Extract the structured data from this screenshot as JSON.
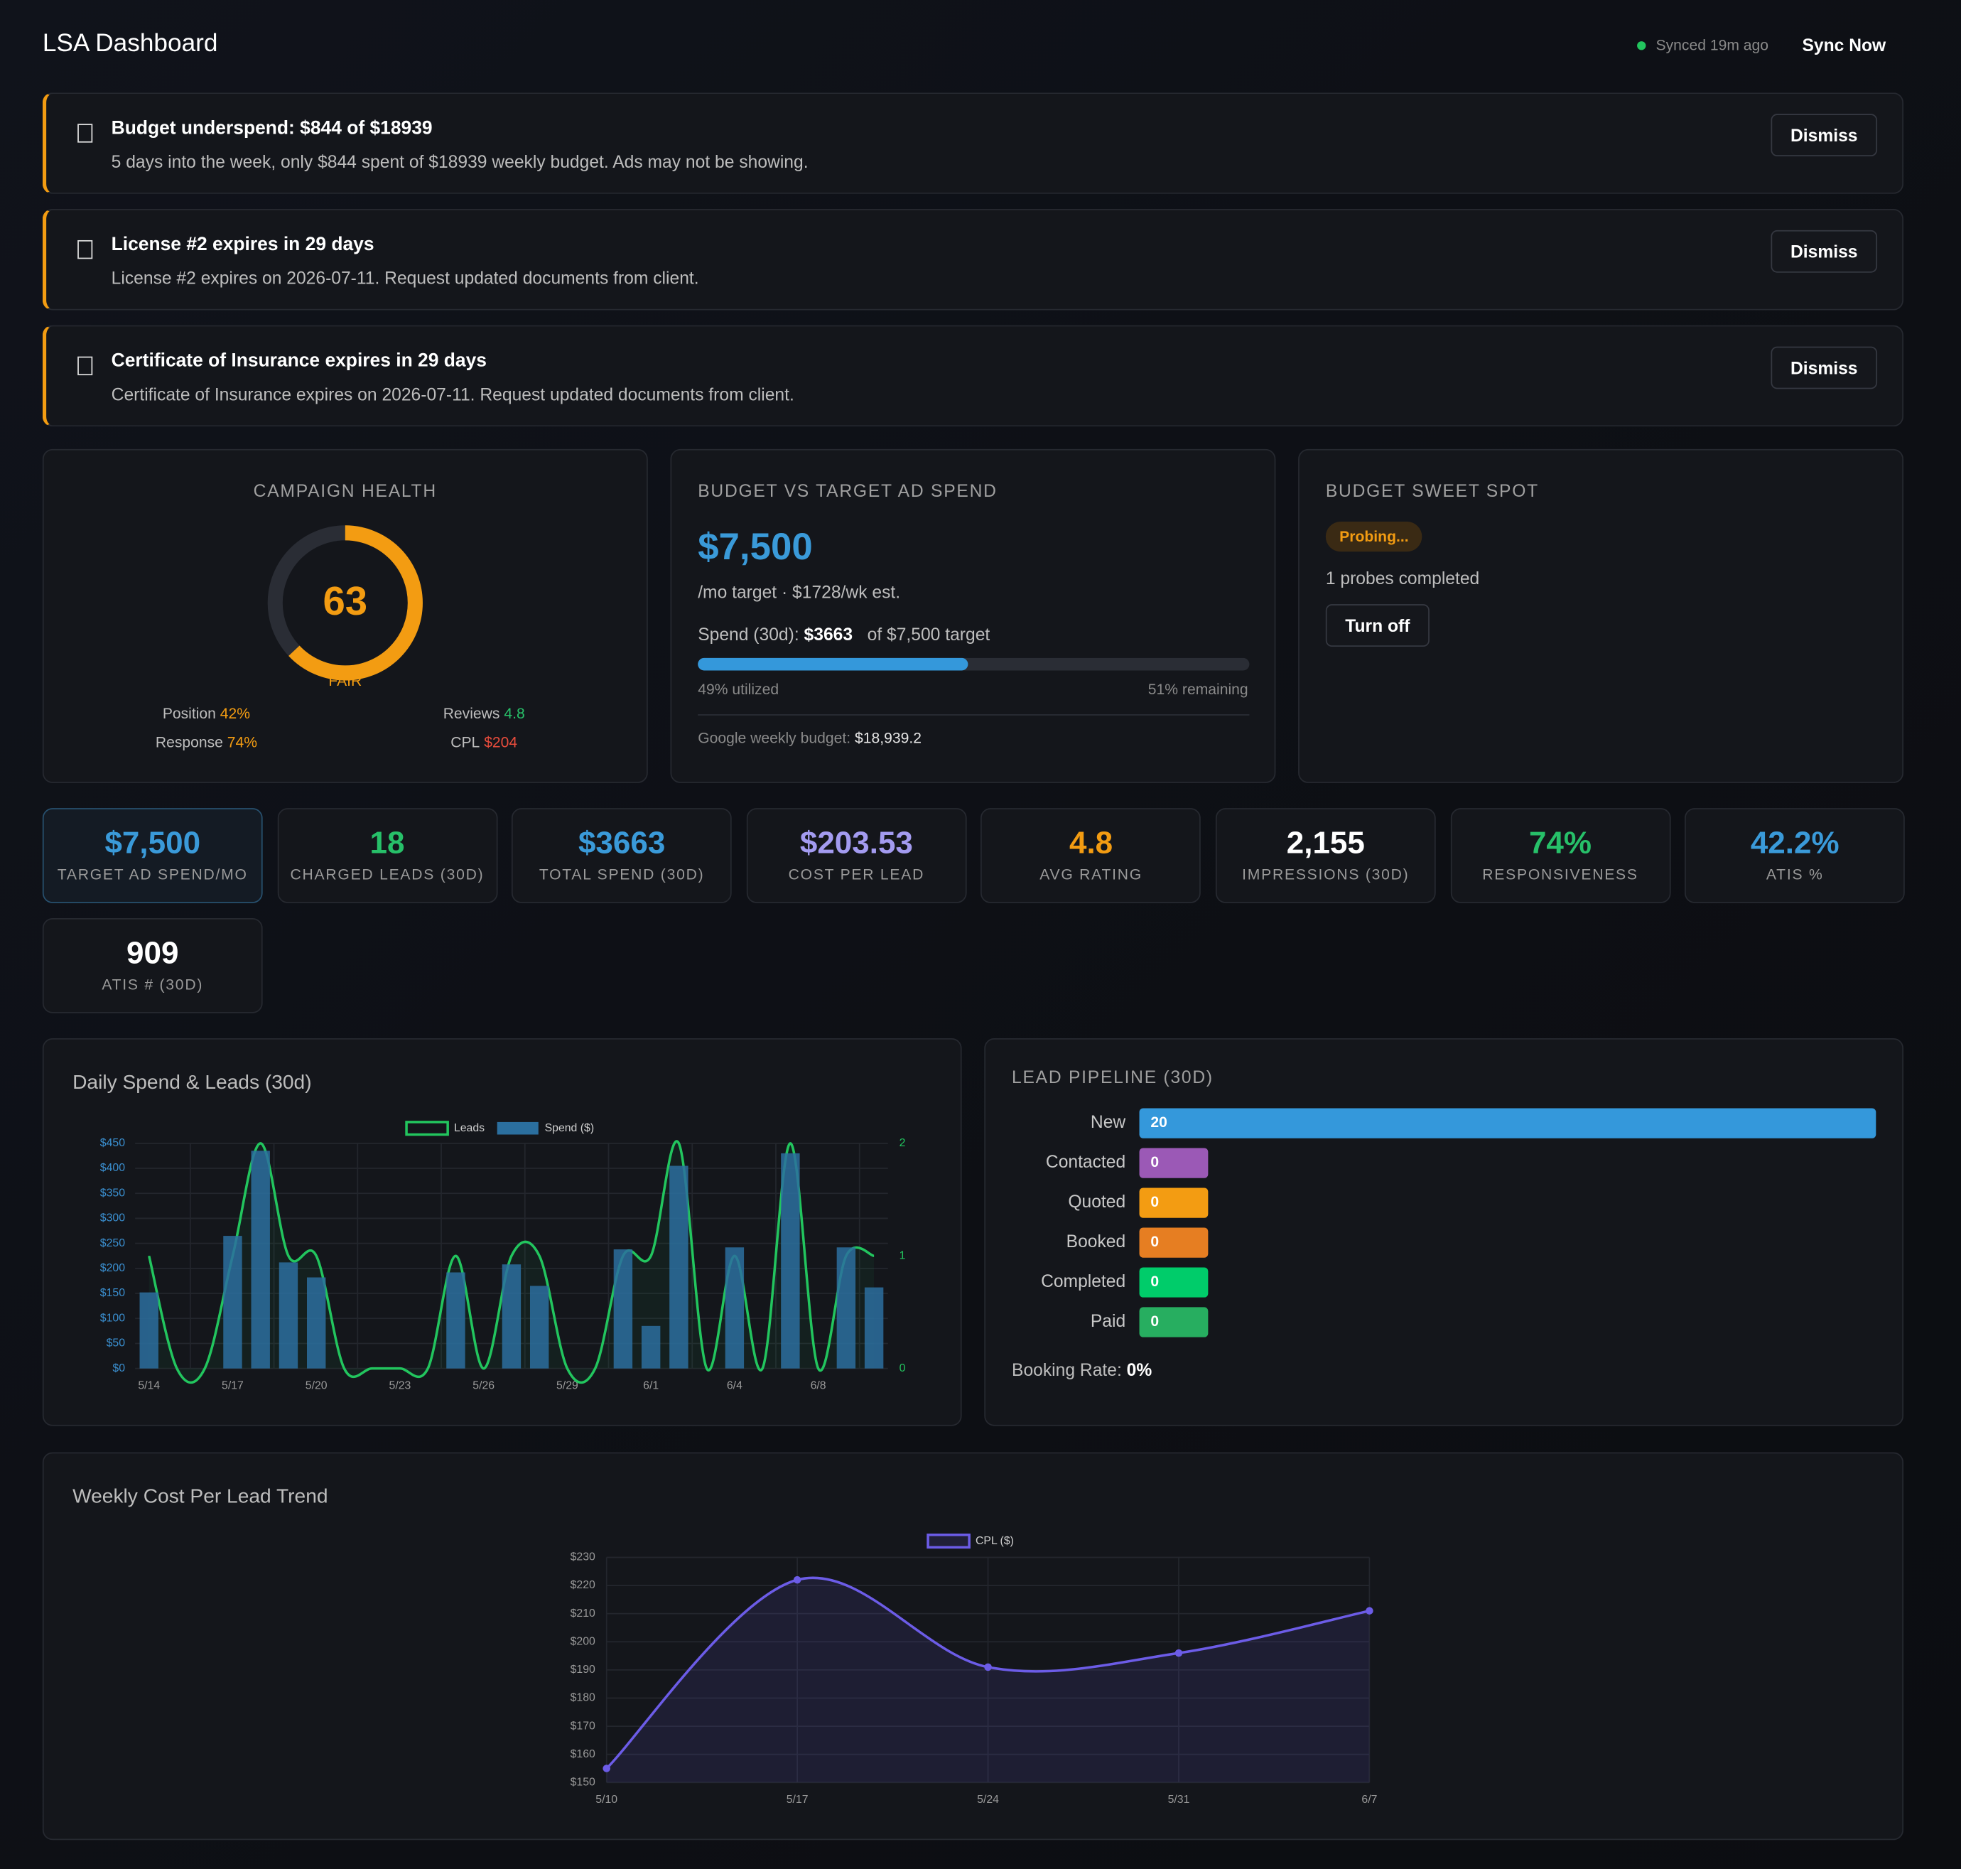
{
  "header": {
    "title": "LSA Dashboard",
    "sync_status": "Synced 19m ago",
    "sync_button": "Sync Now"
  },
  "alerts": [
    {
      "title": "Budget underspend: $844 of $18939",
      "message": "5 days into the week, only $844 spent of $18939 weekly budget. Ads may not be showing.",
      "button": "Dismiss"
    },
    {
      "title": "License #2 expires in 29 days",
      "message": "License #2 expires on 2026-07-11. Request updated documents from client.",
      "button": "Dismiss"
    },
    {
      "title": "Certificate of Insurance expires in 29 days",
      "message": "Certificate of Insurance expires on 2026-07-11. Request updated documents from client.",
      "button": "Dismiss"
    }
  ],
  "campaign_health": {
    "title": "CAMPAIGN HEALTH",
    "score": 63,
    "rating": "FAIR",
    "metrics": [
      {
        "label": "Position",
        "value": "42%",
        "color": "#f39c12"
      },
      {
        "label": "Reviews",
        "value": "4.8",
        "color": "#27c069"
      },
      {
        "label": "Response",
        "value": "74%",
        "color": "#f39c12"
      },
      {
        "label": "CPL",
        "value": "$204",
        "color": "#e74c3c"
      }
    ]
  },
  "budget": {
    "title": "BUDGET VS TARGET AD SPEND",
    "amount": "$7,500",
    "subtitle": "/mo target · $1728/wk est.",
    "spend_label": "Spend (30d):",
    "spend_value": "$3663",
    "spend_target": "of $7,500 target",
    "utilized": {
      "value": 49,
      "label": "49% utilized"
    },
    "remaining": "51% remaining",
    "google_label": "Google weekly budget:",
    "google_value": "$18,939.2"
  },
  "sweet_spot": {
    "title": "BUDGET SWEET SPOT",
    "status": "Probing...",
    "probes": "1 probes completed",
    "button": "Turn off"
  },
  "kpis": [
    {
      "value": "$7,500",
      "label": "TARGET AD SPEND/MO",
      "color": "#3a9ad9"
    },
    {
      "value": "18",
      "label": "CHARGED LEADS (30D)",
      "color": "#27c069"
    },
    {
      "value": "$3663",
      "label": "TOTAL SPEND (30D)",
      "color": "#3a9ad9"
    },
    {
      "value": "$203.53",
      "label": "COST PER LEAD",
      "color": "#a39bf0"
    },
    {
      "value": "4.8",
      "label": "AVG RATING",
      "color": "#f39c12"
    },
    {
      "value": "2,155",
      "label": "IMPRESSIONS (30D)",
      "color": "#ffffff"
    },
    {
      "value": "74%",
      "label": "RESPONSIVENESS",
      "color": "#27c069"
    },
    {
      "value": "42.2%",
      "label": "ATIS %",
      "color": "#3a9ad9"
    },
    {
      "value": "909",
      "label": "ATIS # (30D)",
      "color": "#ffffff"
    }
  ],
  "chart_data": [
    {
      "type": "bar",
      "title": "Daily Spend & Leads (30d)",
      "categories": [
        "5/14",
        null,
        null,
        "5/17",
        null,
        null,
        "5/20",
        null,
        null,
        "5/23",
        null,
        null,
        "5/26",
        null,
        null,
        "5/29",
        null,
        null,
        "6/1",
        null,
        null,
        "6/4",
        null,
        null,
        "6/8",
        null,
        null
      ],
      "series": [
        {
          "name": "Leads",
          "color": "#22c55e",
          "type": "line",
          "axis": "y2",
          "values": [
            1,
            0,
            0,
            1,
            2,
            1,
            1,
            0,
            0,
            0,
            0,
            1,
            0,
            1,
            1,
            0,
            0,
            1,
            1,
            2,
            0,
            1,
            0,
            2,
            0,
            1,
            1
          ]
        },
        {
          "name": "Spend ($)",
          "color": "#2b6f9f",
          "values": [
            152,
            0,
            0,
            265,
            435,
            212,
            182,
            0,
            0,
            0,
            0,
            192,
            0,
            208,
            165,
            0,
            0,
            238,
            85,
            405,
            0,
            242,
            0,
            430,
            0,
            242,
            162
          ]
        }
      ],
      "ylim": [
        0,
        450
      ],
      "yticks": [
        {
          "value": 0,
          "label": "$0"
        },
        {
          "value": 50,
          "label": "$50"
        },
        {
          "value": 100,
          "label": "$100"
        },
        {
          "value": 150,
          "label": "$150"
        },
        {
          "value": 200,
          "label": "$200"
        },
        {
          "value": 250,
          "label": "$250"
        },
        {
          "value": 300,
          "label": "$300"
        },
        {
          "value": 350,
          "label": "$350"
        },
        {
          "value": 400,
          "label": "$400"
        },
        {
          "value": 450,
          "label": "$450"
        }
      ],
      "y2lim": [
        0,
        2
      ],
      "y2ticks": [
        0,
        1,
        2
      ],
      "grid": true,
      "legend": "top"
    },
    {
      "type": "bar",
      "orientation": "horizontal",
      "title": "LEAD PIPELINE (30D)",
      "categories": [
        "New",
        "Contacted",
        "Quoted",
        "Booked",
        "Completed",
        "Paid"
      ],
      "values": [
        20,
        0,
        0,
        0,
        0,
        0
      ],
      "colors": [
        "#3498db",
        "#9b59b6",
        "#f39c12",
        "#e67e22",
        "#00cc6a",
        "#27ae60"
      ]
    },
    {
      "type": "line",
      "title": "Weekly Cost Per Lead Trend",
      "categories": [
        "5/10",
        "5/17",
        "5/24",
        "5/31",
        "6/7"
      ],
      "series": [
        {
          "name": "CPL ($)",
          "color": "#6c5ce7",
          "values": [
            155,
            222,
            191,
            196,
            211
          ]
        }
      ],
      "ylim": [
        150,
        230
      ],
      "yticks": [
        {
          "value": 150,
          "label": "$150"
        },
        {
          "value": 160,
          "label": "$160"
        },
        {
          "value": 170,
          "label": "$170"
        },
        {
          "value": 180,
          "label": "$180"
        },
        {
          "value": 190,
          "label": "$190"
        },
        {
          "value": 200,
          "label": "$200"
        },
        {
          "value": 210,
          "label": "$210"
        },
        {
          "value": 220,
          "label": "$220"
        },
        {
          "value": 230,
          "label": "$230"
        }
      ],
      "grid": true,
      "legend": "top"
    }
  ],
  "booking_rate": {
    "label": "Booking Rate:",
    "value": "0%"
  }
}
